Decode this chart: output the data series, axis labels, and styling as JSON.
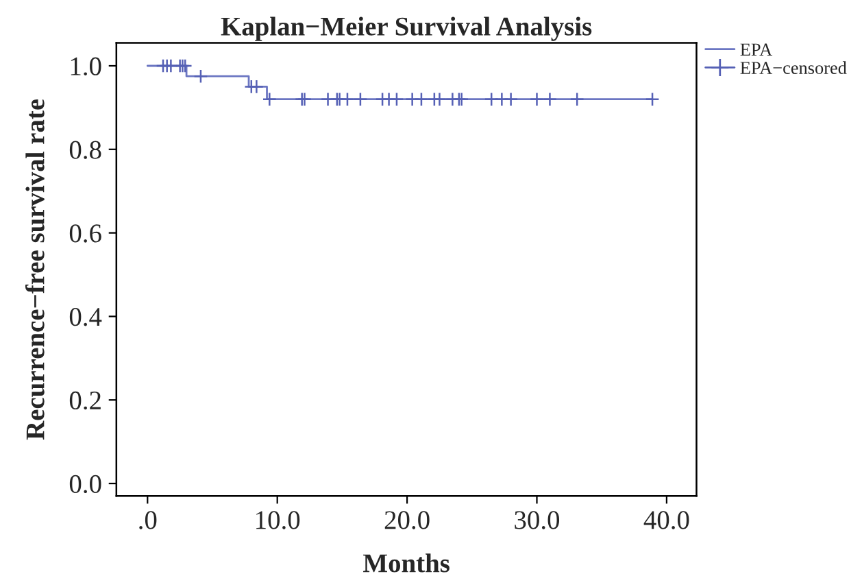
{
  "chart_data": {
    "type": "step",
    "title": "Kaplan−Meier Survival Analysis",
    "xlabel": "Months",
    "ylabel": "Recurrence−free survival rate",
    "xlim": [
      -2.4,
      42.3
    ],
    "ylim": [
      -0.03,
      1.055
    ],
    "xticks": [
      {
        "value": 0,
        "label": ".0"
      },
      {
        "value": 10,
        "label": "10.0"
      },
      {
        "value": 20,
        "label": "20.0"
      },
      {
        "value": 30,
        "label": "30.0"
      },
      {
        "value": 40,
        "label": "40.0"
      }
    ],
    "yticks": [
      {
        "value": 0,
        "label": "0.0"
      },
      {
        "value": 0.2,
        "label": "0.2"
      },
      {
        "value": 0.4,
        "label": "0.4"
      },
      {
        "value": 0.6,
        "label": "0.6"
      },
      {
        "value": 0.8,
        "label": "0.8"
      },
      {
        "value": 1,
        "label": "1.0"
      }
    ],
    "grid": false,
    "legend": "top right",
    "series": [
      {
        "name": "EPA",
        "marker": "none",
        "color": "#6b76c2",
        "x": [
          0,
          3.0,
          7.8,
          9.2,
          38.9
        ],
        "values": [
          1.0,
          0.975,
          0.95,
          0.92,
          0.92
        ]
      },
      {
        "name": "EPA−censored",
        "type": "scatter",
        "marker": "cross",
        "color": "#5560b5",
        "x": [
          1.2,
          1.5,
          1.8,
          2.5,
          2.7,
          2.9,
          4.1,
          8.0,
          8.4,
          9.4,
          11.9,
          12.1,
          13.9,
          14.6,
          14.8,
          15.4,
          16.4,
          18.1,
          18.6,
          19.2,
          20.4,
          21.1,
          22.1,
          22.5,
          23.5,
          24.0,
          24.2,
          26.5,
          27.3,
          28.0,
          30.0,
          31.0,
          33.1,
          38.9
        ],
        "values": [
          1.0,
          1.0,
          1.0,
          1.0,
          1.0,
          1.0,
          0.975,
          0.95,
          0.95,
          0.92,
          0.92,
          0.92,
          0.92,
          0.92,
          0.92,
          0.92,
          0.92,
          0.92,
          0.92,
          0.92,
          0.92,
          0.92,
          0.92,
          0.92,
          0.92,
          0.92,
          0.92,
          0.92,
          0.92,
          0.92,
          0.92,
          0.92,
          0.92,
          0.92
        ]
      }
    ]
  }
}
